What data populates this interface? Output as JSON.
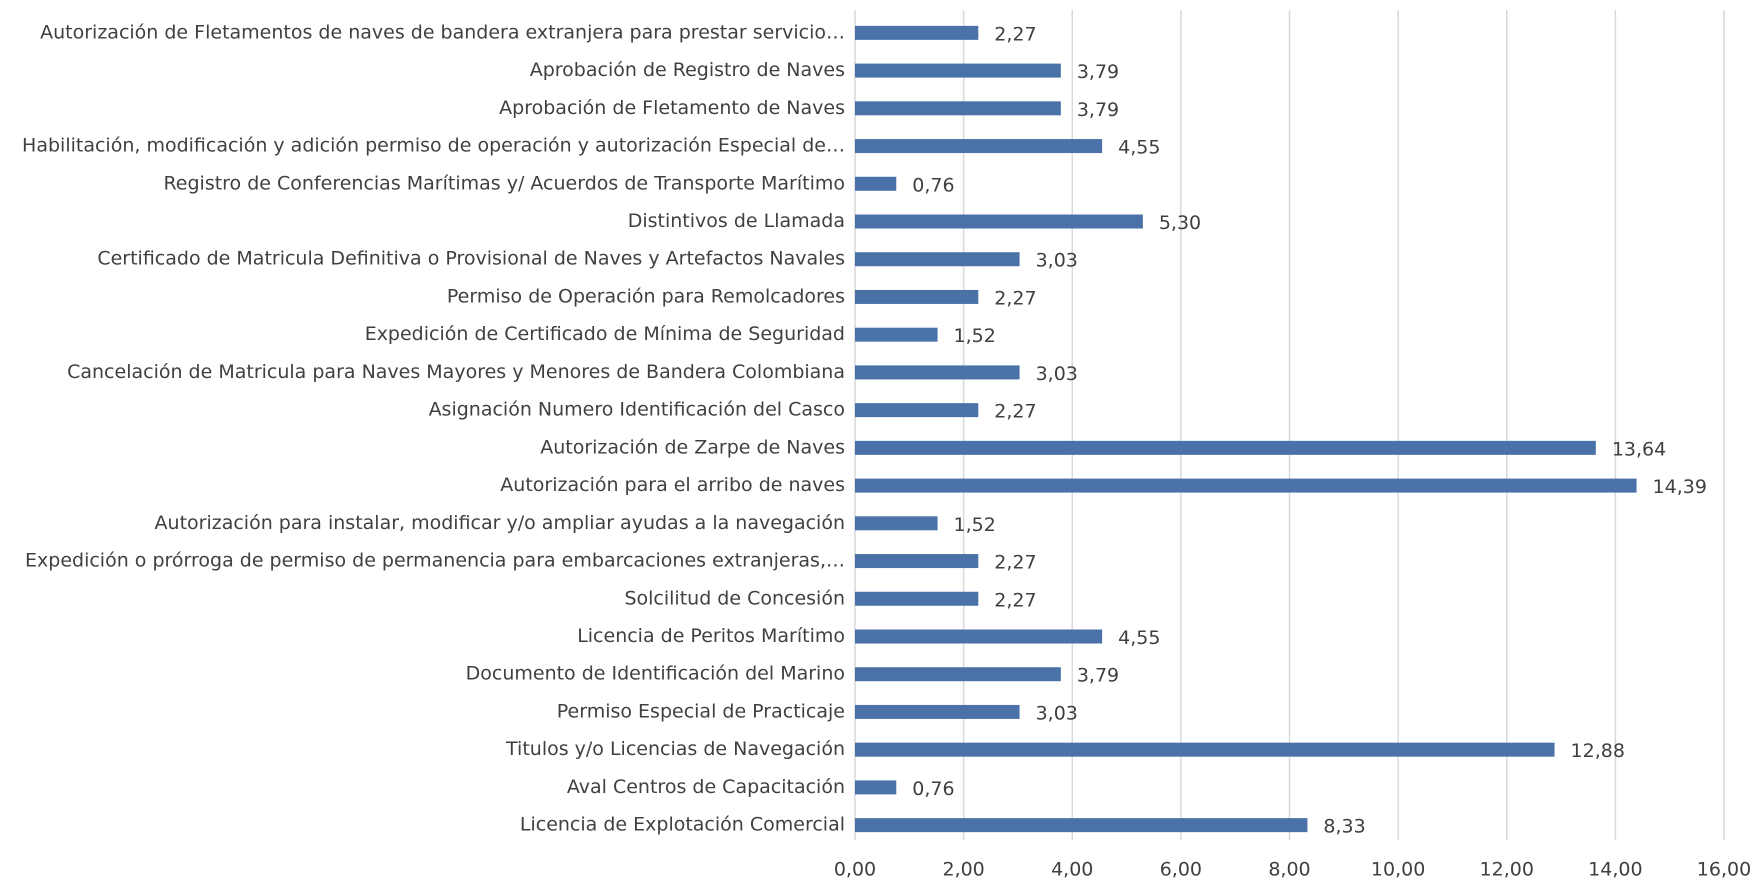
{
  "chart_data": {
    "type": "bar",
    "orientation": "horizontal",
    "categories": [
      "Autorización de Fletamentos de naves de bandera extranjera para prestar servicio…",
      "Aprobación de Registro de Naves",
      "Aprobación de Fletamento de Naves",
      "Habilitación, modificación y adición permiso de operación y autorización Especial de…",
      "Registro de Conferencias Marítimas y/ Acuerdos de Transporte Marítimo",
      "Distintivos de Llamada",
      "Certificado de Matricula Definitiva o Provisional de Naves y Artefactos Navales",
      "Permiso de Operación para Remolcadores",
      "Expedición de Certificado de Mínima de Seguridad",
      "Cancelación de Matricula para Naves Mayores y Menores de Bandera Colombiana",
      "Asignación Numero Identificación del Casco",
      "Autorización de Zarpe de Naves",
      "Autorización para el arribo de naves",
      "Autorización para instalar, modificar y/o ampliar ayudas a la navegación",
      "Expedición o prórroga de permiso de permanencia para embarcaciones extranjeras,…",
      "Solcilitud de Concesión",
      "Licencia de Peritos Marítimo",
      "Documento de Identificación del Marino",
      "Permiso Especial de Practicaje",
      "Titulos y/o Licencias de Navegación",
      "Aval Centros de Capacitación",
      "Licencia de Explotación Comercial"
    ],
    "values": [
      2.27,
      3.79,
      3.79,
      4.55,
      0.76,
      5.3,
      3.03,
      2.27,
      1.52,
      3.03,
      2.27,
      13.64,
      14.39,
      1.52,
      2.27,
      2.27,
      4.55,
      3.79,
      3.03,
      12.88,
      0.76,
      8.33
    ],
    "value_labels": [
      "2,27",
      "3,79",
      "3,79",
      "4,55",
      "0,76",
      "5,30",
      "3,03",
      "2,27",
      "1,52",
      "3,03",
      "2,27",
      "13,64",
      "14,39",
      "1,52",
      "2,27",
      "2,27",
      "4,55",
      "3,79",
      "3,03",
      "12,88",
      "0,76",
      "8,33"
    ],
    "color": "#4a72a8",
    "xlim": [
      0,
      16
    ],
    "xticks": [
      {
        "value": 0,
        "label": "0,00"
      },
      {
        "value": 2,
        "label": "2,00"
      },
      {
        "value": 4,
        "label": "4,00"
      },
      {
        "value": 6,
        "label": "6,00"
      },
      {
        "value": 8,
        "label": "8,00"
      },
      {
        "value": 10,
        "label": "10,00"
      },
      {
        "value": 12,
        "label": "12,00"
      },
      {
        "value": 14,
        "label": "14,00"
      },
      {
        "value": 16,
        "label": "16,00"
      }
    ],
    "grid": true
  }
}
